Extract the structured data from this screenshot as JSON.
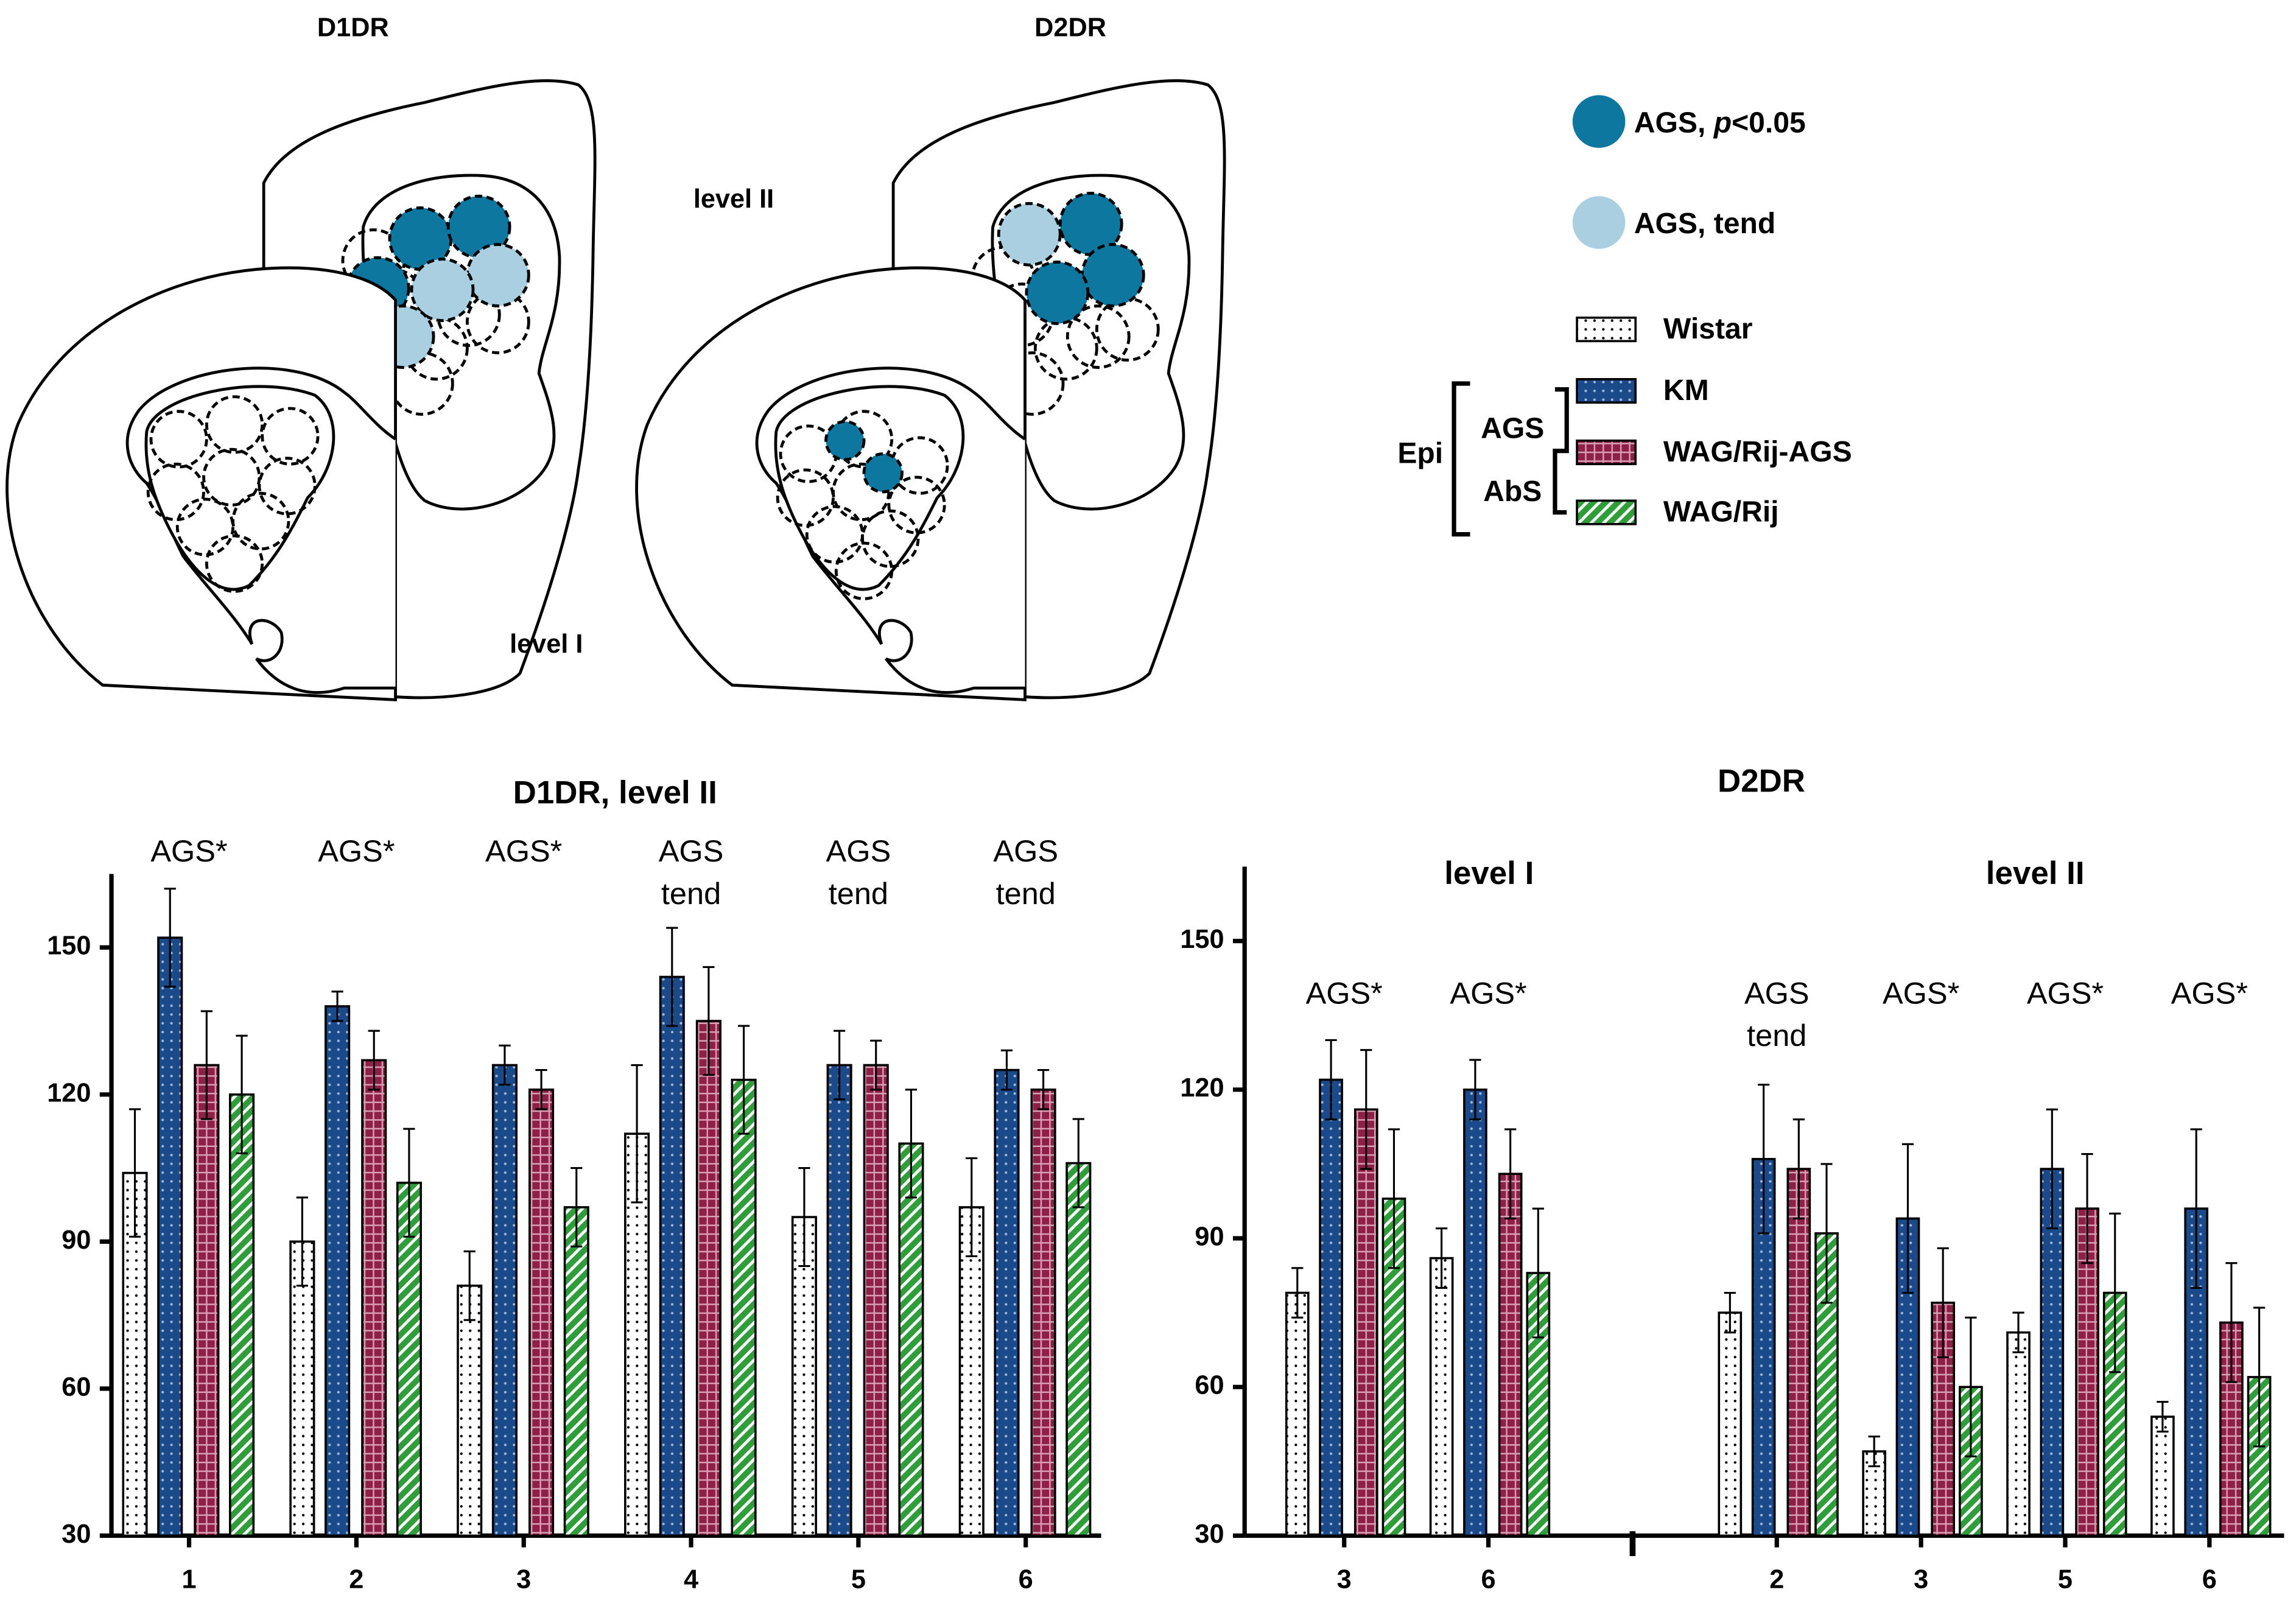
{
  "diagram": {
    "panel_titles": [
      "D1DR",
      "D2DR"
    ],
    "level_labels": [
      "level II",
      "level I"
    ],
    "marker_legend": [
      {
        "label": [
          "AGS, ",
          "p",
          "<0.05"
        ],
        "color": "#0e77a0"
      },
      {
        "label": [
          "AGS, tend"
        ],
        "color": "#a9cfe0"
      }
    ],
    "groups": {
      "outer": "Epi",
      "inner": [
        "AGS",
        "AbS"
      ]
    }
  },
  "chart_data": [
    {
      "type": "bar",
      "title": "D1DR, level II",
      "categories": [
        "1",
        "2",
        "3",
        "4",
        "5",
        "6"
      ],
      "annotations": [
        [
          "AGS*"
        ],
        [
          "AGS*"
        ],
        [
          "AGS*"
        ],
        [
          "AGS",
          "tend"
        ],
        [
          "AGS",
          "tend"
        ],
        [
          "AGS",
          "tend"
        ]
      ],
      "series": [
        {
          "name": "Wistar",
          "color": "#ffffff",
          "pattern": "dots",
          "values": [
            104,
            90,
            81,
            112,
            95,
            97
          ],
          "errors": [
            13,
            9,
            7,
            14,
            10,
            10
          ]
        },
        {
          "name": "KM",
          "color": "#1b4a8a",
          "pattern": "dots",
          "values": [
            152,
            138,
            126,
            144,
            126,
            125
          ],
          "errors": [
            10,
            3,
            4,
            10,
            7,
            4
          ]
        },
        {
          "name": "WAG/Rij-AGS",
          "color": "#8e1f46",
          "pattern": "grid",
          "values": [
            126,
            127,
            121,
            135,
            126,
            121
          ],
          "errors": [
            11,
            6,
            4,
            11,
            5,
            4
          ]
        },
        {
          "name": "WAG/Rij",
          "color": "#2f9e3a",
          "pattern": "stripes",
          "values": [
            120,
            102,
            97,
            123,
            110,
            106
          ],
          "errors": [
            12,
            11,
            8,
            11,
            11,
            9
          ]
        }
      ],
      "ylim": [
        30,
        165
      ],
      "yticks": [
        30,
        60,
        90,
        120,
        150
      ]
    },
    {
      "type": "bar",
      "title": "D2DR",
      "group_labels": [
        "level I",
        "level II"
      ],
      "categories": [
        "3",
        "6",
        null,
        "2",
        "3",
        "5",
        "6"
      ],
      "annotations": [
        [
          "AGS*"
        ],
        [
          "AGS*"
        ],
        null,
        [
          "AGS",
          "tend"
        ],
        [
          "AGS*"
        ],
        [
          "AGS*"
        ],
        [
          "AGS*"
        ]
      ],
      "series": [
        {
          "color": "#ffffff",
          "pattern": "dots",
          "values": [
            79,
            86,
            null,
            75,
            47,
            71,
            54
          ],
          "errors": [
            5,
            6,
            null,
            4,
            3,
            4,
            3
          ]
        },
        {
          "color": "#1b4a8a",
          "pattern": "dots",
          "values": [
            122,
            120,
            null,
            106,
            94,
            104,
            96
          ],
          "errors": [
            8,
            6,
            null,
            15,
            15,
            12,
            16
          ]
        },
        {
          "color": "#8e1f46",
          "pattern": "grid",
          "values": [
            116,
            103,
            null,
            104,
            77,
            96,
            73
          ],
          "errors": [
            12,
            9,
            null,
            10,
            11,
            11,
            12
          ]
        },
        {
          "color": "#2f9e3a",
          "pattern": "stripes",
          "values": [
            98,
            83,
            null,
            91,
            60,
            79,
            62
          ],
          "errors": [
            14,
            13,
            null,
            14,
            14,
            16,
            14
          ]
        }
      ],
      "ylim": [
        30,
        165
      ],
      "yticks": [
        30,
        60,
        90,
        120,
        150
      ]
    }
  ]
}
